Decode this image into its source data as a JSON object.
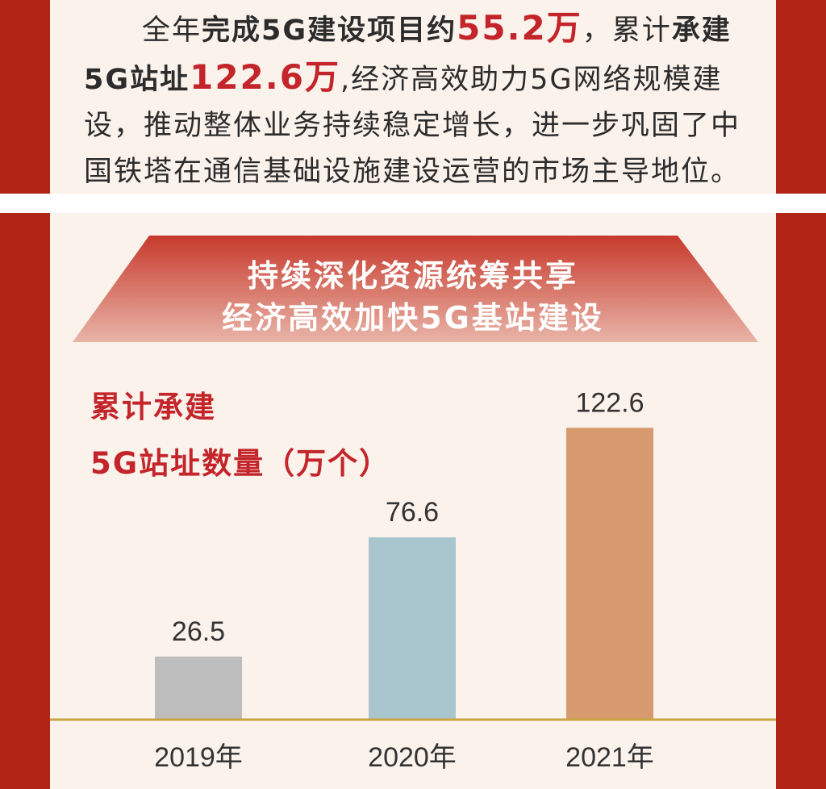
{
  "colors": {
    "frame_red": "#b22416",
    "accent_red": "#c3252a",
    "panel_bg": "#fbf2ec",
    "baseline": "#c9a640"
  },
  "intro": {
    "seg1": "全年",
    "seg2": "完成5G建设项目约",
    "seg3": "55.2万",
    "seg4": "，累计",
    "seg5": "承建5G站址",
    "seg6": "122.6万",
    "seg7": ",经济高效助力5G网络规模建设，推动整体业务持续稳定增长，进一步巩固了中国铁塔在通信基础设施建设运营的市场主导地位。"
  },
  "banner": {
    "line1": "持续深化资源统筹共享",
    "line2": "经济高效加快5G基站建设"
  },
  "chart_data": {
    "type": "bar",
    "title_line1": "累计承建",
    "title_line2": "5G站址数量（万个）",
    "categories": [
      "2019年",
      "2020年",
      "2021年"
    ],
    "values": [
      26.5,
      76.6,
      122.6
    ],
    "value_labels": [
      "26.5",
      "76.6",
      "122.6"
    ],
    "colors": [
      "#bdbdbd",
      "#a9c6cf",
      "#d79a6e"
    ],
    "ylim": [
      0,
      140
    ],
    "grid": false,
    "legend": "none"
  }
}
